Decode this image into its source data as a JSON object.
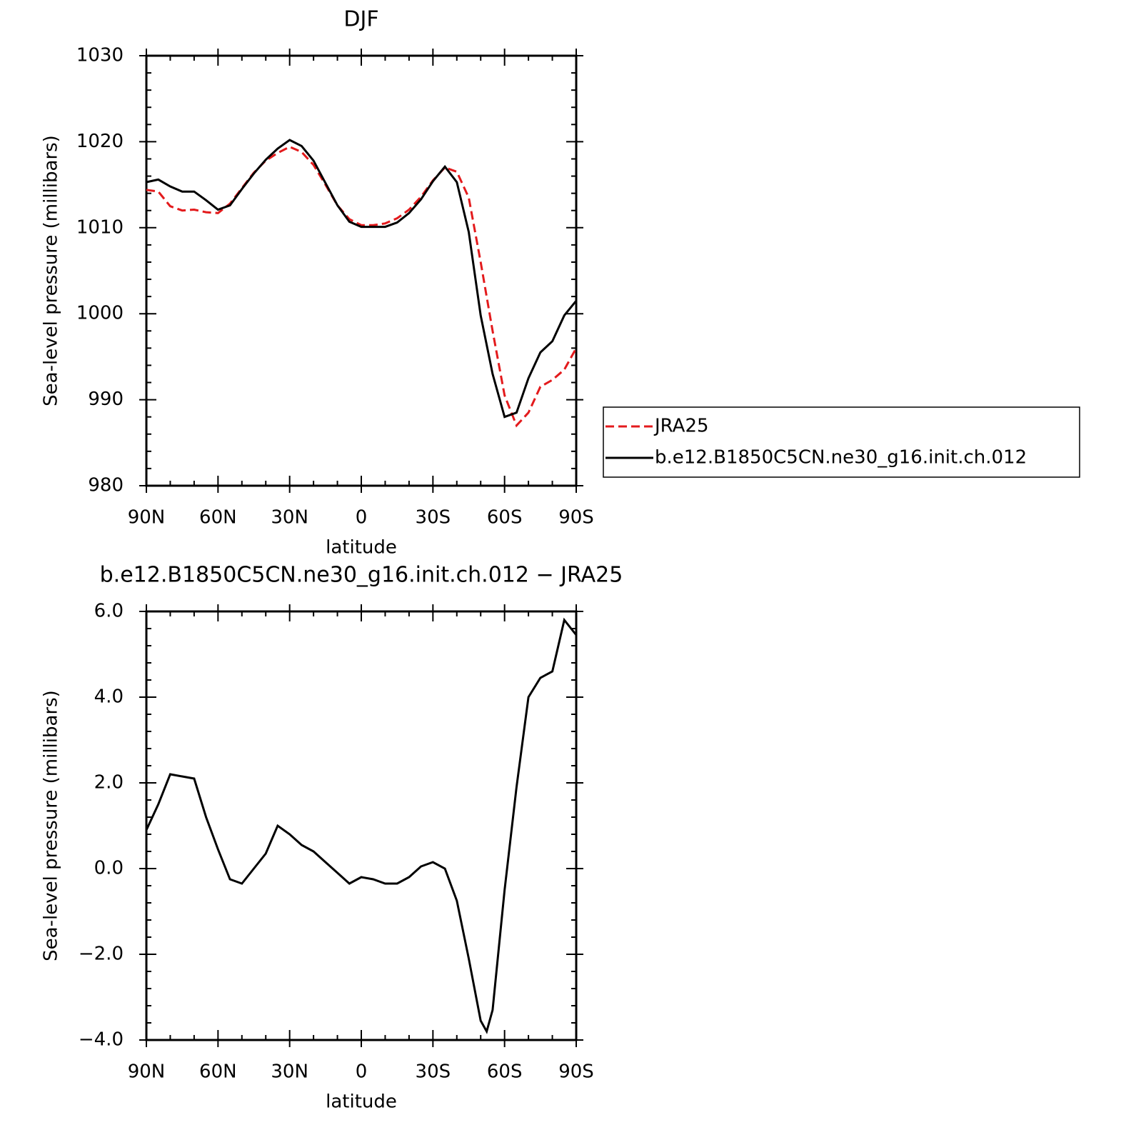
{
  "chart_data": [
    {
      "type": "line",
      "title": "DJF",
      "xlabel": "latitude",
      "ylabel": "Sea-level pressure (millibars)",
      "xlim": [
        90,
        -90
      ],
      "ylim": [
        980,
        1030
      ],
      "xticks": [
        {
          "value": 90,
          "label": "90N"
        },
        {
          "value": 60,
          "label": "60N"
        },
        {
          "value": 30,
          "label": "30N"
        },
        0,
        {
          "value": -30,
          "label": "30S"
        },
        {
          "value": -60,
          "label": "60S"
        },
        {
          "value": -90,
          "label": "90S"
        }
      ],
      "yticks": [
        980,
        990,
        1000,
        1010,
        1020,
        1030
      ],
      "legend": "right",
      "x": [
        90,
        85,
        80,
        75,
        70,
        65,
        60,
        55,
        50,
        45,
        40,
        35,
        30,
        25,
        20,
        15,
        10,
        5,
        0,
        -5,
        -10,
        -15,
        -20,
        -25,
        -30,
        -35,
        -40,
        -45,
        -50,
        -55,
        -60,
        -65,
        -70,
        -75,
        -80,
        -85,
        -90
      ],
      "series": [
        {
          "name": "JRA25",
          "color": "#e31a1c",
          "dashed": true,
          "values": [
            1014.4,
            1014.2,
            1012.5,
            1012.0,
            1012.1,
            1011.8,
            1011.7,
            1012.8,
            1014.6,
            1016.4,
            1017.8,
            1018.7,
            1019.4,
            1018.8,
            1017.3,
            1015.0,
            1012.6,
            1011.0,
            1010.3,
            1010.3,
            1010.5,
            1011.1,
            1012.1,
            1013.6,
            1015.5,
            1017.0,
            1016.5,
            1013.5,
            1006.0,
            998.0,
            990.5,
            987.0,
            988.5,
            991.5,
            992.3,
            993.5,
            996.0
          ]
        },
        {
          "name": "b.e12.B1850C5CN.ne30_g16.init.ch.012",
          "color": "#000000",
          "dashed": false,
          "values": [
            1015.3,
            1015.6,
            1014.8,
            1014.2,
            1014.2,
            1013.2,
            1012.1,
            1012.6,
            1014.5,
            1016.3,
            1017.9,
            1019.2,
            1020.2,
            1019.5,
            1017.8,
            1015.2,
            1012.6,
            1010.7,
            1010.1,
            1010.1,
            1010.1,
            1010.6,
            1011.7,
            1013.3,
            1015.4,
            1017.1,
            1015.3,
            1009.5,
            999.8,
            993.0,
            988.0,
            988.5,
            992.5,
            995.5,
            996.8,
            999.8,
            1001.5
          ]
        }
      ]
    },
    {
      "type": "line",
      "title": "b.e12.B1850C5CN.ne30_g16.init.ch.012 − JRA25",
      "xlabel": "latitude",
      "ylabel": "Sea-level pressure (millibars)",
      "xlim": [
        90,
        -90
      ],
      "ylim": [
        -4,
        6
      ],
      "xticks": [
        {
          "value": 90,
          "label": "90N"
        },
        {
          "value": 60,
          "label": "60N"
        },
        {
          "value": 30,
          "label": "30N"
        },
        0,
        {
          "value": -30,
          "label": "30S"
        },
        {
          "value": -60,
          "label": "60S"
        },
        {
          "value": -90,
          "label": "90S"
        }
      ],
      "yticks": [
        {
          "value": -4,
          "label": "−4.0"
        },
        {
          "value": -2,
          "label": "−2.0"
        },
        {
          "value": 0,
          "label": "0.0"
        },
        {
          "value": 2,
          "label": "2.0"
        },
        {
          "value": 4,
          "label": "4.0"
        },
        {
          "value": 6,
          "label": "6.0"
        }
      ],
      "x": [
        90,
        85,
        80,
        75,
        70,
        65,
        60,
        55,
        50,
        45,
        40,
        35,
        30,
        25,
        20,
        15,
        10,
        5,
        0,
        -5,
        -10,
        -15,
        -20,
        -25,
        -30,
        -35,
        -40,
        -45,
        -50,
        -52.5,
        -55,
        -60,
        -65,
        -70,
        -75,
        -80,
        -85,
        -90
      ],
      "series": [
        {
          "color": "#000000",
          "dashed": false,
          "values": [
            0.9,
            1.5,
            2.2,
            2.15,
            2.1,
            1.2,
            0.45,
            -0.25,
            -0.35,
            0.0,
            0.35,
            1.0,
            0.8,
            0.55,
            0.4,
            0.15,
            -0.1,
            -0.35,
            -0.2,
            -0.25,
            -0.35,
            -0.35,
            -0.2,
            0.05,
            0.15,
            0.0,
            -0.75,
            -2.1,
            -3.55,
            -3.8,
            -3.3,
            -0.5,
            1.9,
            4.0,
            4.45,
            4.6,
            5.8,
            5.45
          ]
        }
      ]
    }
  ]
}
